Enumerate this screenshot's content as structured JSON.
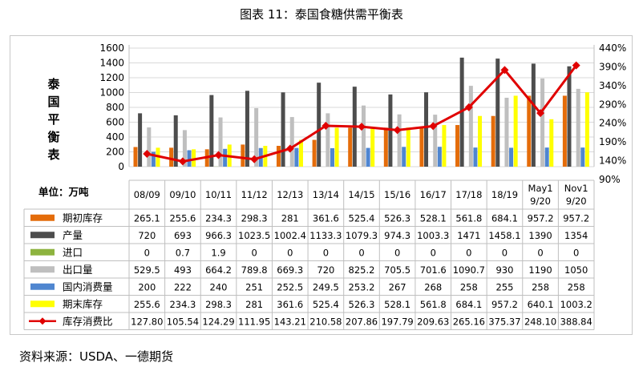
{
  "title": "图表 11：泰国食糖供需平衡表",
  "source": "资料来源：USDA、一德期货",
  "table_header": "单位：万吨",
  "colors": {
    "期初库存": "#e46c0a",
    "产量": "#4d4d4d",
    "进口": "#8db33f",
    "出口量": "#bfbfbf",
    "国内消费量": "#4f86d0",
    "期末库存": "#ffff00",
    "库存消费比": "#e00000"
  },
  "chart_data": {
    "type": "bar",
    "ylabel": "泰国平衡表",
    "categories": [
      "08/09",
      "09/10",
      "10/11",
      "11/12",
      "12/13",
      "13/14",
      "14/15",
      "15/16",
      "16/17",
      "17/18",
      "18/19",
      "May19/20",
      "Nov19/20"
    ],
    "category_lines": [
      [
        "08/09"
      ],
      [
        "09/10"
      ],
      [
        "10/11"
      ],
      [
        "11/12"
      ],
      [
        "12/13"
      ],
      [
        "13/14"
      ],
      [
        "14/15"
      ],
      [
        "15/16"
      ],
      [
        "16/17"
      ],
      [
        "17/18"
      ],
      [
        "18/19"
      ],
      [
        "May1",
        "9/20"
      ],
      [
        "Nov1",
        "9/20"
      ]
    ],
    "ylim": [
      0,
      1600
    ],
    "yticks": [
      "0",
      "200",
      "400",
      "600",
      "800",
      "1000",
      "1200",
      "1400",
      "1600"
    ],
    "y2lim": [
      90,
      440
    ],
    "y2ticks": [
      "90%",
      "140%",
      "190%",
      "240%",
      "290%",
      "340%",
      "390%",
      "440%"
    ],
    "grid": true,
    "series": [
      {
        "name": "期初库存",
        "type": "bar",
        "values": [
          265.1,
          255.6,
          234.3,
          298.3,
          281,
          361.6,
          525.4,
          526.3,
          528.1,
          561.8,
          684.1,
          957.2,
          957.2
        ],
        "labels": [
          "265.1",
          "255.6",
          "234.3",
          "298.3",
          "281",
          "361.6",
          "525.4",
          "526.3",
          "528.1",
          "561.8",
          "684.1",
          "957.2",
          "957.2"
        ]
      },
      {
        "name": "产量",
        "type": "bar",
        "values": [
          720,
          693,
          966.3,
          1023.5,
          1002.4,
          1133.3,
          1079.3,
          974.3,
          1003.3,
          1471,
          1458.1,
          1390,
          1354
        ],
        "labels": [
          "720",
          "693",
          "966.3",
          "1023.5",
          "1002.4",
          "1133.3",
          "1079.3",
          "974.3",
          "1003.3",
          "1471",
          "1458.1",
          "1390",
          "1354"
        ]
      },
      {
        "name": "进口",
        "type": "bar",
        "values": [
          0,
          0.7,
          1.9,
          0,
          0,
          0,
          0,
          0,
          0,
          0,
          0,
          0,
          0
        ],
        "labels": [
          "0",
          "0.7",
          "1.9",
          "0",
          "0",
          "0",
          "0",
          "0",
          "0",
          "0",
          "0",
          "0",
          "0"
        ]
      },
      {
        "name": "出口量",
        "type": "bar",
        "values": [
          529.5,
          493,
          664.2,
          789.8,
          669.3,
          720,
          825.2,
          705.5,
          701.6,
          1090.7,
          930,
          1190,
          1050
        ],
        "labels": [
          "529.5",
          "493",
          "664.2",
          "789.8",
          "669.3",
          "720",
          "825.2",
          "705.5",
          "701.6",
          "1090.7",
          "930",
          "1190",
          "1050"
        ]
      },
      {
        "name": "国内消费量",
        "type": "bar",
        "values": [
          200,
          222,
          240,
          251,
          252.5,
          249.5,
          253.2,
          267,
          268,
          258,
          255,
          258,
          258
        ],
        "labels": [
          "200",
          "222",
          "240",
          "251",
          "252.5",
          "249.5",
          "253.2",
          "267",
          "268",
          "258",
          "255",
          "258",
          "258"
        ]
      },
      {
        "name": "期末库存",
        "type": "bar",
        "values": [
          255.6,
          234.3,
          298.3,
          281,
          361.6,
          525.4,
          526.3,
          528.1,
          561.8,
          684.1,
          957.2,
          640.1,
          1003.2
        ],
        "labels": [
          "255.6",
          "234.3",
          "298.3",
          "281",
          "361.6",
          "525.4",
          "526.3",
          "528.1",
          "561.8",
          "684.1",
          "957.2",
          "640.1",
          "1003.2"
        ]
      },
      {
        "name": "库存消费比",
        "type": "line",
        "axis": "right",
        "values": [
          127.8,
          105.54,
          124.29,
          111.95,
          143.21,
          210.58,
          207.86,
          197.79,
          209.63,
          265.16,
          375.37,
          248.1,
          388.84
        ],
        "labels": [
          "127.80",
          "105.54",
          "124.29",
          "111.95",
          "143.21",
          "210.58",
          "207.86",
          "197.79",
          "209.63",
          "265.16",
          "375.37",
          "248.10",
          "388.84"
        ]
      }
    ]
  }
}
